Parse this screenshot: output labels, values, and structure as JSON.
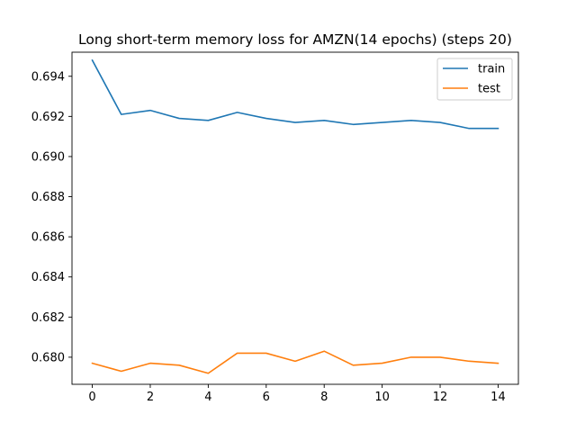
{
  "chart_data": {
    "type": "line",
    "title": "Long short-term memory loss for AMZN(14 epochs) (steps 20)",
    "xlabel": "",
    "ylabel": "",
    "x": [
      0,
      1,
      2,
      3,
      4,
      5,
      6,
      7,
      8,
      9,
      10,
      11,
      12,
      13,
      14
    ],
    "xlim": [
      -0.7,
      14.7
    ],
    "ylim": [
      0.67865,
      0.6952
    ],
    "xticks": [
      0,
      2,
      4,
      6,
      8,
      10,
      12,
      14
    ],
    "xtick_labels": [
      "0",
      "2",
      "4",
      "6",
      "8",
      "10",
      "12",
      "14"
    ],
    "yticks": [
      0.68,
      0.682,
      0.684,
      0.686,
      0.688,
      0.69,
      0.692,
      0.694
    ],
    "ytick_labels": [
      "0.680",
      "0.682",
      "0.684",
      "0.686",
      "0.688",
      "0.690",
      "0.692",
      "0.694"
    ],
    "grid": false,
    "legend_position": "top-right",
    "series": [
      {
        "name": "train",
        "color": "#1f77b4",
        "values": [
          0.6948,
          0.6921,
          0.6923,
          0.6919,
          0.6918,
          0.6922,
          0.6919,
          0.6917,
          0.6918,
          0.6916,
          0.6917,
          0.6918,
          0.6917,
          0.6914,
          0.6914
        ]
      },
      {
        "name": "test",
        "color": "#ff7f0e",
        "values": [
          0.6797,
          0.6793,
          0.6797,
          0.6796,
          0.6792,
          0.6802,
          0.6802,
          0.6798,
          0.6803,
          0.6796,
          0.6797,
          0.68,
          0.68,
          0.6798,
          0.6797
        ]
      }
    ]
  }
}
